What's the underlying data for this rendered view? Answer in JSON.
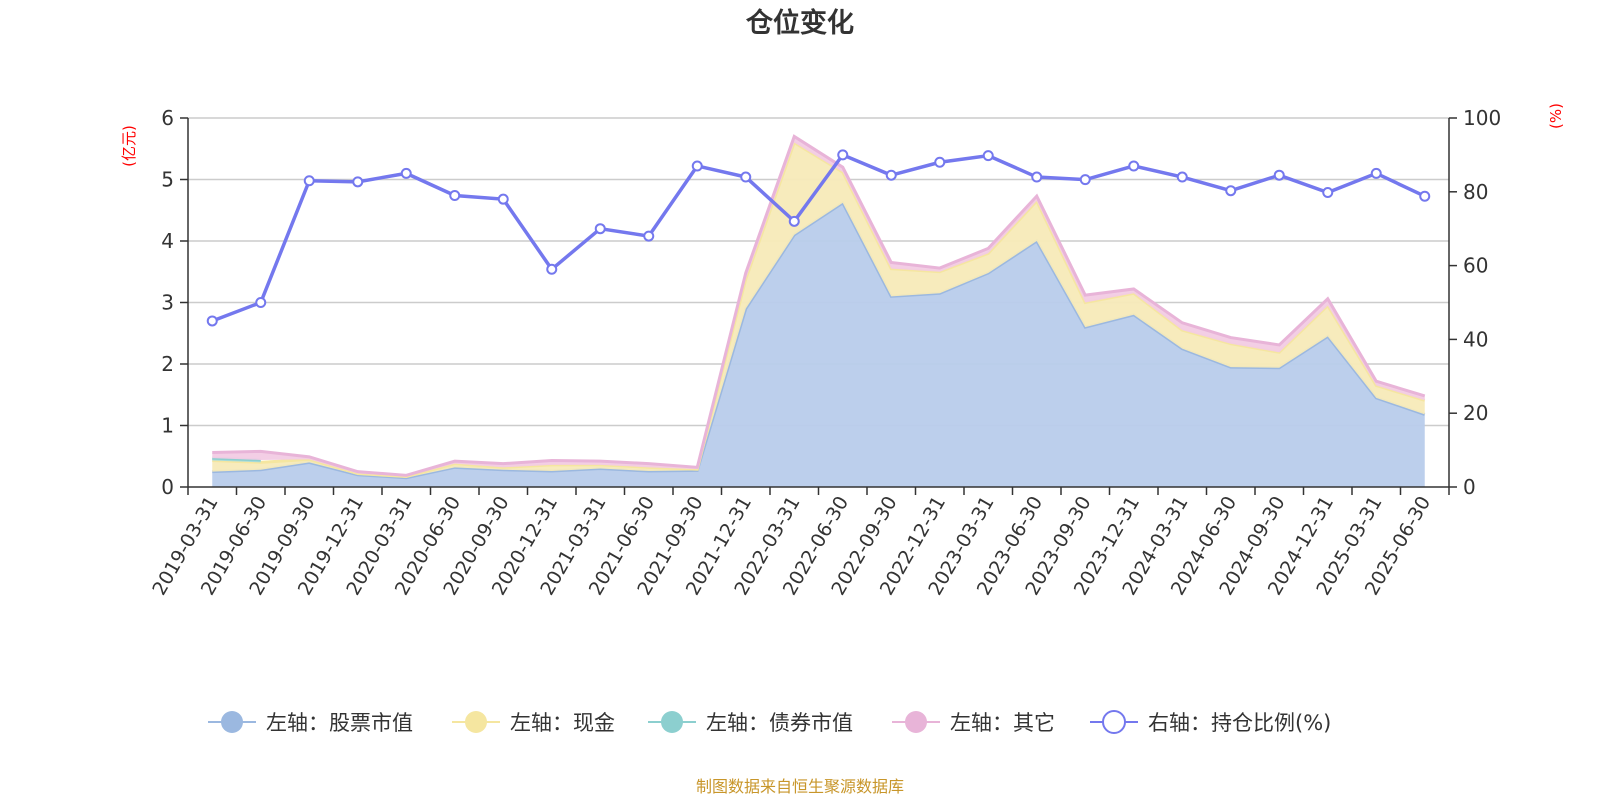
{
  "chart_data": {
    "type": "area",
    "title": "仓位变化",
    "left_axis_unit": "(亿元)",
    "right_axis_unit": "(%)",
    "left_ylim": [
      0,
      6
    ],
    "left_ticks": [
      "0",
      "1",
      "2",
      "3",
      "4",
      "5",
      "6"
    ],
    "right_ylim": [
      0,
      100
    ],
    "right_ticks": [
      "0",
      "20",
      "40",
      "60",
      "80",
      "100"
    ],
    "grid": true,
    "legend_position": "bottom",
    "categories": [
      "2019-03-31",
      "2019-06-30",
      "2019-09-30",
      "2019-12-31",
      "2020-03-31",
      "2020-06-30",
      "2020-09-30",
      "2020-12-31",
      "2021-03-31",
      "2021-06-30",
      "2021-09-30",
      "2021-12-31",
      "2022-03-31",
      "2022-06-30",
      "2022-09-30",
      "2022-12-31",
      "2023-03-31",
      "2023-06-30",
      "2023-09-30",
      "2023-12-31",
      "2024-03-31",
      "2024-06-30",
      "2024-09-30",
      "2024-12-31",
      "2025-03-31",
      "2025-06-30"
    ],
    "series": [
      {
        "name": "左轴：股票市值",
        "axis": "left",
        "kind": "area",
        "color": "#9bb8e0",
        "fill": "#b8cceb",
        "values": [
          0.25,
          0.28,
          0.4,
          0.2,
          0.15,
          0.32,
          0.28,
          0.26,
          0.3,
          0.26,
          0.27,
          2.9,
          4.1,
          4.62,
          3.1,
          3.15,
          3.48,
          4.0,
          2.6,
          2.8,
          2.25,
          1.95,
          1.94,
          2.45,
          1.45,
          1.18
        ]
      },
      {
        "name": "左轴：现金",
        "axis": "left",
        "kind": "area",
        "color": "#f5e6a0",
        "fill": "#f7eab8",
        "values": [
          0.18,
          0.12,
          0.05,
          0.02,
          0.02,
          0.06,
          0.04,
          0.1,
          0.06,
          0.06,
          0.02,
          0.48,
          1.5,
          0.5,
          0.45,
          0.35,
          0.32,
          0.65,
          0.4,
          0.35,
          0.3,
          0.38,
          0.25,
          0.5,
          0.2,
          0.23
        ]
      },
      {
        "name": "左轴：债券市值",
        "axis": "left",
        "kind": "area",
        "color": "#8ccfcf",
        "fill": "#a8dcdc",
        "values": [
          0.04,
          0.04,
          0,
          0,
          0,
          0,
          0,
          0,
          0,
          0,
          0,
          0,
          0,
          0,
          0,
          0,
          0,
          0,
          0,
          0,
          0,
          0,
          0,
          0,
          0,
          0
        ]
      },
      {
        "name": "左轴：其它",
        "axis": "left",
        "kind": "area",
        "color": "#e8b4d8",
        "fill": "#f2cbe4",
        "values": [
          0.09,
          0.14,
          0.04,
          0.03,
          0.02,
          0.04,
          0.06,
          0.07,
          0.06,
          0.06,
          0.03,
          0.1,
          0.1,
          0.08,
          0.1,
          0.06,
          0.08,
          0.08,
          0.12,
          0.07,
          0.12,
          0.1,
          0.12,
          0.11,
          0.07,
          0.07
        ]
      },
      {
        "name": "右轴：持仓比例(%)",
        "axis": "right",
        "kind": "line",
        "color": "#7478ee",
        "values": [
          45,
          50,
          83,
          82.7,
          85,
          79,
          78,
          59,
          70,
          68,
          87,
          84,
          72,
          90,
          84.5,
          88,
          89.8,
          84,
          83.3,
          87,
          84,
          80.3,
          84.5,
          79.8,
          85,
          78.8
        ]
      }
    ]
  },
  "source": "制图数据来自恒生聚源数据库"
}
